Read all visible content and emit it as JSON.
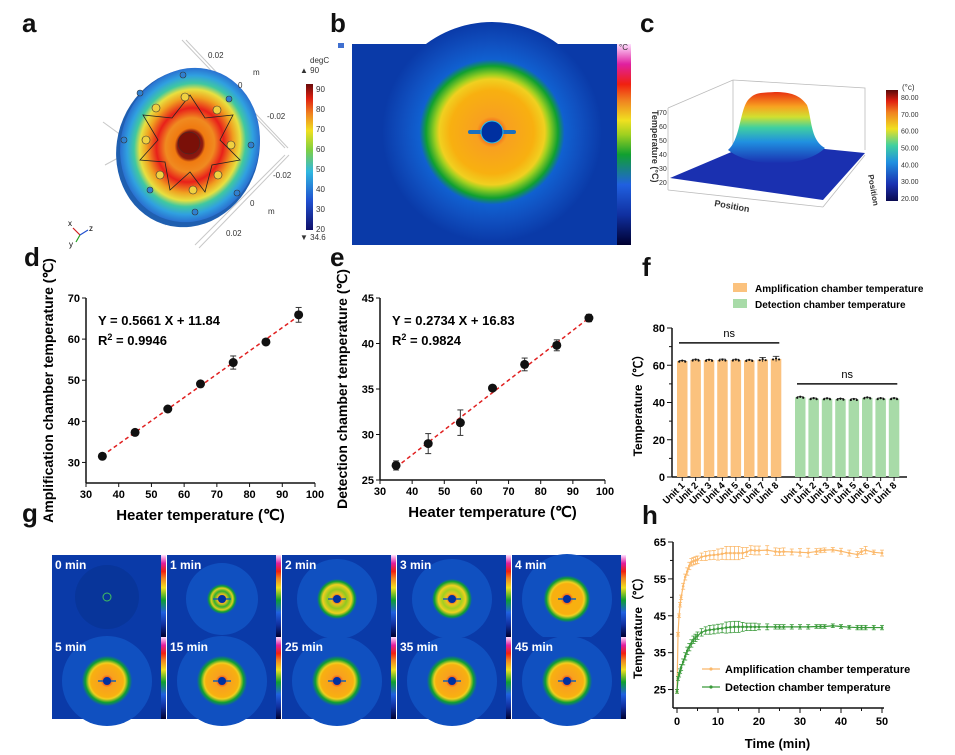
{
  "panels": {
    "a": {
      "label": "a",
      "colorbar_unit": "degC",
      "colorbar_max_marker": "▲ 90",
      "colorbar_min_marker": "▼ 34.6",
      "colorbar_ticks": [
        "90",
        "80",
        "70",
        "60",
        "50",
        "40",
        "30",
        "20"
      ],
      "axis_labels": [
        "0.02",
        "m",
        "0",
        "-0.02",
        "-0.02",
        "0",
        "m",
        "0.02"
      ],
      "triad": [
        "x",
        "y",
        "z"
      ]
    },
    "b": {
      "label": "b",
      "colorbar_unit": "°C",
      "colorbar_ticks": [
        "100",
        "90",
        "85",
        "80",
        "75",
        "70",
        "65",
        "60",
        "55",
        "50",
        "45",
        "40",
        "35",
        "30",
        "25",
        "20"
      ]
    },
    "c": {
      "label": "c",
      "zlabel": "Temperature (°C)",
      "xlabel": "Position",
      "ylabel": "Position",
      "colorbar_unit": "(°c)",
      "colorbar_ticks": [
        "80.00",
        "70.00",
        "60.00",
        "50.00",
        "40.00",
        "30.00",
        "20.00"
      ],
      "z_ticks": [
        "70",
        "60",
        "50",
        "40",
        "30",
        "20"
      ],
      "x_ticks": [
        "100",
        "200",
        "300",
        "400",
        "500",
        "600"
      ],
      "y_ticks": [
        "100",
        "200",
        "300",
        "400"
      ]
    },
    "g": {
      "label": "g",
      "tiles": [
        "0 min",
        "1 min",
        "2 min",
        "3 min",
        "4 min",
        "5 min",
        "15 min",
        "25 min",
        "35 min",
        "45 min"
      ]
    }
  },
  "chart_data": [
    {
      "id": "d",
      "label": "d",
      "type": "scatter",
      "xlabel": "Heater temperature (℃)",
      "ylabel": "Amplification chamber temperature (℃)",
      "xlim": [
        30,
        100
      ],
      "ylim": [
        25,
        70
      ],
      "x_ticks": [
        30,
        40,
        50,
        60,
        70,
        80,
        90,
        100
      ],
      "y_ticks": [
        30,
        40,
        50,
        60,
        70
      ],
      "x": [
        35,
        45,
        55,
        65,
        75,
        85,
        95
      ],
      "y": [
        31.5,
        37.3,
        43.0,
        49.1,
        54.3,
        59.3,
        65.9
      ],
      "err": [
        0.3,
        0.4,
        0.3,
        0.4,
        1.6,
        0.4,
        1.8
      ],
      "fit": {
        "slope": 0.5661,
        "intercept": 11.84
      },
      "equation": "Y = 0.5661 X + 11.84",
      "r2_prefix": "R",
      "r2_sup": "2",
      "r2_value": " = 0.9946"
    },
    {
      "id": "e",
      "label": "e",
      "type": "scatter",
      "xlabel": "Heater temperature (℃)",
      "ylabel": "Detection chamber temperature (℃)",
      "xlim": [
        30,
        100
      ],
      "ylim": [
        25,
        45
      ],
      "x_ticks": [
        30,
        40,
        50,
        60,
        70,
        80,
        90,
        100
      ],
      "y_ticks": [
        25,
        30,
        35,
        40,
        45
      ],
      "x": [
        35,
        45,
        55,
        65,
        75,
        85,
        95
      ],
      "y": [
        26.6,
        29.0,
        31.3,
        35.1,
        37.7,
        39.8,
        42.8
      ],
      "err": [
        0.5,
        1.1,
        1.4,
        0.2,
        0.7,
        0.6,
        0.4
      ],
      "fit": {
        "slope": 0.2734,
        "intercept": 16.83
      },
      "equation": "Y = 0.2734 X + 16.83",
      "r2_prefix": "R",
      "r2_sup": "2",
      "r2_value": " = 0.9824"
    },
    {
      "id": "f",
      "label": "f",
      "type": "bar",
      "ylabel": "Temperature（℃）",
      "ylim": [
        0,
        80
      ],
      "y_ticks": [
        0,
        20,
        40,
        60,
        80
      ],
      "categories": [
        "Unit 1",
        "Unit 2",
        "Unit 3",
        "Unit 4",
        "Unit 5",
        "Unit 6",
        "Unit 7",
        "Unit 8"
      ],
      "series": [
        {
          "name": "Amplification chamber temperature",
          "color": "#fbc27e",
          "values": [
            62.2,
            62.8,
            62.7,
            62.8,
            62.8,
            62.6,
            63.0,
            63.4
          ],
          "err": [
            0.3,
            0.4,
            0.4,
            0.5,
            0.4,
            0.3,
            1.2,
            1.4
          ]
        },
        {
          "name": "Detection chamber temperature",
          "color": "#a8dba8",
          "values": [
            42.8,
            42.1,
            42.0,
            41.8,
            41.6,
            42.5,
            42.1,
            42.1
          ],
          "err": [
            0.3,
            0.3,
            0.3,
            0.4,
            0.4,
            0.3,
            0.3,
            0.3
          ]
        }
      ],
      "annotations": [
        "ns",
        "ns"
      ],
      "legend_position": "top"
    },
    {
      "id": "h",
      "label": "h",
      "type": "line",
      "xlabel": "Time (min)",
      "ylabel": "Temperature（℃）",
      "xlim": [
        0,
        50
      ],
      "ylim": [
        20,
        65
      ],
      "x_ticks": [
        0,
        10,
        20,
        30,
        40,
        50
      ],
      "y_ticks": [
        25,
        35,
        45,
        55,
        65
      ],
      "x": [
        0,
        0.25,
        0.5,
        0.75,
        1,
        1.5,
        2,
        2.5,
        3,
        3.5,
        4,
        4.5,
        5,
        6,
        7,
        8,
        9,
        10,
        11,
        12,
        13,
        14,
        15,
        16,
        17,
        18,
        19,
        20,
        22,
        24,
        25,
        26,
        28,
        30,
        32,
        34,
        35,
        36,
        38,
        40,
        42,
        44,
        45,
        46,
        48,
        50
      ],
      "series": [
        {
          "name": "Amplification chamber temperature",
          "color": "#fbb86a",
          "values": [
            24.5,
            40,
            45,
            48,
            50,
            53,
            55.5,
            57,
            58.5,
            59.5,
            59.8,
            60,
            60.2,
            61,
            61.2,
            61.4,
            61.5,
            61.6,
            61.8,
            62,
            62,
            62,
            62,
            62,
            62.3,
            62.8,
            62.7,
            62.7,
            62.8,
            62.4,
            62.3,
            62.4,
            62.3,
            62.2,
            62.1,
            62.4,
            62.7,
            62.8,
            62.9,
            62.5,
            62,
            61.6,
            62.4,
            62.8,
            62.2,
            62
          ],
          "err": [
            0.5,
            0.5,
            0.5,
            0.6,
            0.6,
            0.8,
            0.8,
            1,
            1,
            1,
            1,
            1,
            1,
            1,
            1.2,
            1.2,
            1.2,
            1.5,
            1.5,
            1.8,
            1.8,
            1.8,
            1.8,
            1.5,
            1.2,
            1.2,
            1.2,
            1.2,
            1.2,
            1,
            1,
            1,
            0.8,
            1,
            1.2,
            0.8,
            0.6,
            0.6,
            0.6,
            0.8,
            0.8,
            0.8,
            0.8,
            1,
            0.6,
            0.8
          ]
        },
        {
          "name": "Detection chamber temperature",
          "color": "#3a9a3a",
          "values": [
            24.5,
            28,
            29,
            30,
            31,
            32.5,
            34,
            35.5,
            36.5,
            37.5,
            38.5,
            39,
            39.6,
            40.5,
            41,
            41.2,
            41.3,
            41.5,
            41.6,
            41.8,
            41.9,
            42,
            42,
            42,
            42,
            42,
            42,
            42,
            42,
            42,
            42,
            42,
            42,
            42,
            42,
            42.1,
            42.1,
            42.1,
            42.3,
            42.1,
            41.9,
            41.8,
            41.8,
            41.8,
            41.8,
            41.8
          ],
          "err": [
            0.5,
            0.5,
            0.6,
            0.6,
            0.8,
            0.8,
            1,
            1,
            1,
            1,
            1,
            1,
            1,
            1,
            1,
            1.2,
            1.2,
            1.2,
            1.2,
            1.5,
            1.5,
            1.5,
            1.5,
            1.2,
            1,
            1,
            1,
            0.8,
            0.8,
            0.6,
            0.6,
            0.6,
            0.6,
            0.6,
            0.6,
            0.5,
            0.5,
            0.5,
            0.5,
            0.5,
            0.5,
            0.6,
            0.6,
            0.6,
            0.6,
            0.6
          ]
        }
      ],
      "legend_position": "bottom-right"
    }
  ]
}
